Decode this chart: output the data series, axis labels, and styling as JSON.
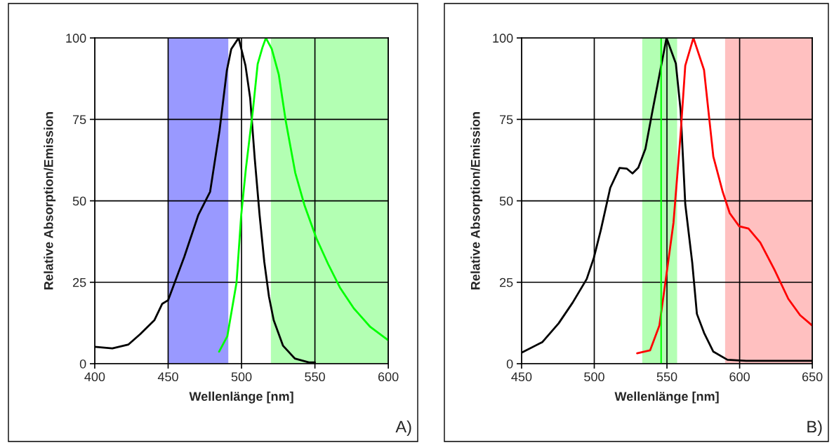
{
  "chart_data": [
    {
      "type": "line",
      "xlabel": "Wellenlänge [nm]",
      "ylabel": "Relative Absorption/Emission",
      "xlim": [
        400,
        600
      ],
      "ylim": [
        0,
        100
      ],
      "xticks": [
        400,
        450,
        500,
        550,
        600
      ],
      "yticks": [
        0,
        25,
        50,
        75,
        100
      ],
      "grid": true,
      "legend": false,
      "marker": "none",
      "line_style": "solid",
      "annotations": [
        "A)"
      ],
      "bands": [
        {
          "axis": "x",
          "from": 450,
          "to": 491,
          "color": "#9999ff"
        },
        {
          "axis": "x",
          "from": 520,
          "to": 600,
          "color": "#b3ffb3"
        }
      ],
      "series": [
        {
          "color": "#000000",
          "x": [
            400,
            412,
            423,
            431,
            440.7,
            446,
            450,
            461,
            470.6,
            478.6,
            485,
            490,
            493,
            498,
            502.7,
            505.9,
            509,
            512.3,
            515.5,
            518.7,
            521.9,
            528.3,
            536.3,
            545.9,
            550
          ],
          "values": [
            5.2,
            4.7,
            5.9,
            9.1,
            13.4,
            18.4,
            19.5,
            32.8,
            45.7,
            52.8,
            71.5,
            90,
            96.6,
            100,
            91.5,
            81.5,
            63,
            45.7,
            31.3,
            20.6,
            13.4,
            5.5,
            1.6,
            0.4,
            0.4
          ]
        },
        {
          "color": "#00ff00",
          "x": [
            484.7,
            490.3,
            496.6,
            499.8,
            503,
            507.8,
            511,
            514.2,
            516.6,
            520.6,
            525.4,
            530.2,
            536.6,
            543,
            551,
            559,
            567,
            576.5,
            587.7,
            600
          ],
          "values": [
            3.7,
            8.4,
            24.9,
            45.7,
            60,
            78,
            92,
            97,
            100,
            96.6,
            88.7,
            74.3,
            58.6,
            48.5,
            38.5,
            30.6,
            23.4,
            17,
            11.3,
            7.2
          ]
        }
      ]
    },
    {
      "type": "line",
      "xlabel": "Wellenlänge [nm]",
      "ylabel": "Relative Absorption/Emission",
      "xlim": [
        450,
        650
      ],
      "ylim": [
        0,
        100
      ],
      "xticks": [
        450,
        500,
        550,
        600,
        650
      ],
      "yticks": [
        0,
        25,
        50,
        75,
        100
      ],
      "grid": true,
      "legend": false,
      "marker": "none",
      "line_style": "solid",
      "annotations": [
        "B)"
      ],
      "bands": [
        {
          "axis": "x",
          "from": 533,
          "to": 557,
          "color": "#b3ffb3"
        },
        {
          "axis": "x",
          "from": 590,
          "to": 650,
          "color": "#ffc0c0"
        }
      ],
      "ref_lines": [
        {
          "axis": "x",
          "value": 546,
          "color": "#00ff00",
          "line_style": "solid"
        }
      ],
      "series": [
        {
          "color": "#000000",
          "x": [
            450,
            464.2,
            475.5,
            485.2,
            494.8,
            499.7,
            504.5,
            511,
            517.4,
            522.3,
            526.3,
            530.3,
            535.2,
            540,
            544.8,
            549.7,
            556.1,
            559.4,
            562.6,
            567.4,
            570.6,
            575.5,
            581.9,
            591.6,
            604.5,
            650
          ],
          "values": [
            3.4,
            6.6,
            12.4,
            18.8,
            26,
            32.5,
            41,
            54,
            60.1,
            59.9,
            58.4,
            60.2,
            66,
            77.5,
            88.6,
            100,
            92.2,
            77.8,
            49,
            31,
            15.3,
            9.5,
            3.7,
            1.2,
            0.9,
            0.9
          ]
        },
        {
          "color": "#ff0000",
          "x": [
            529.5,
            538.4,
            544.8,
            549.7,
            554.5,
            559.4,
            562.6,
            568.2,
            575.5,
            581.9,
            588.4,
            593.2,
            599.7,
            606.1,
            614.2,
            623.9,
            633.5,
            641.6,
            650
          ],
          "values": [
            3.2,
            4.1,
            11.7,
            27.5,
            43.3,
            70.6,
            91.5,
            100,
            90.2,
            63.6,
            52.7,
            46.2,
            42.2,
            41.5,
            37.2,
            28.9,
            19.9,
            14.9,
            11.7
          ]
        }
      ]
    }
  ]
}
